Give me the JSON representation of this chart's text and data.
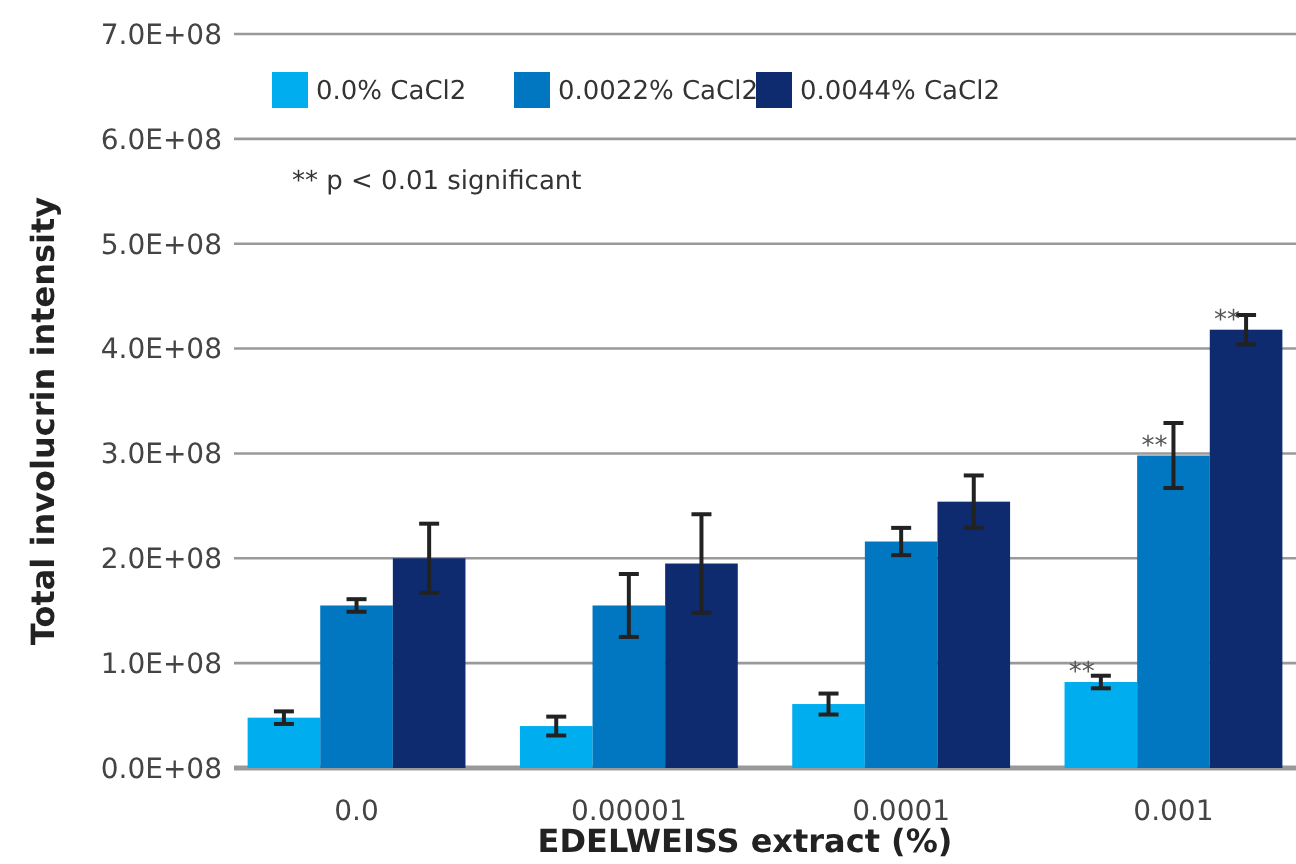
{
  "chart_data": {
    "type": "bar",
    "xlabel": "EDELWEISS extract (%)",
    "ylabel": "Total involucrin intensity",
    "categories": [
      "0.0",
      "0.00001",
      "0.0001",
      "0.001"
    ],
    "series": [
      {
        "name": "0.0% CaCl2",
        "color": "#00aeef",
        "values": [
          48000000,
          40000000,
          61000000,
          82000000
        ],
        "errors": [
          6000000,
          9000000,
          10000000,
          6000000
        ],
        "value_labels": [
          null,
          null,
          null,
          "**"
        ]
      },
      {
        "name": "0.0022% CaCl2",
        "color": "#0077c0",
        "values": [
          155000000,
          155000000,
          216000000,
          298000000
        ],
        "errors": [
          6000000,
          30000000,
          13000000,
          31000000
        ],
        "value_labels": [
          null,
          null,
          null,
          "**"
        ]
      },
      {
        "name": "0.0044% CaCl2",
        "color": "#0d2b6e",
        "values": [
          200000000,
          195000000,
          254000000,
          418000000
        ],
        "errors": [
          33000000,
          47000000,
          25000000,
          14000000
        ],
        "value_labels": [
          null,
          null,
          null,
          "**"
        ]
      }
    ],
    "ylim": [
      0,
      700000000
    ],
    "yticks": [
      {
        "value": 0,
        "label": "0.0E+08"
      },
      {
        "value": 100000000,
        "label": "1.0E+08"
      },
      {
        "value": 200000000,
        "label": "2.0E+08"
      },
      {
        "value": 300000000,
        "label": "3.0E+08"
      },
      {
        "value": 400000000,
        "label": "4.0E+08"
      },
      {
        "value": 500000000,
        "label": "5.0E+08"
      },
      {
        "value": 600000000,
        "label": "6.0E+08"
      },
      {
        "value": 700000000,
        "label": "7.0E+08"
      }
    ],
    "grid": "y",
    "legend": "top left",
    "annotations": [
      "** p < 0.01 significant"
    ]
  }
}
